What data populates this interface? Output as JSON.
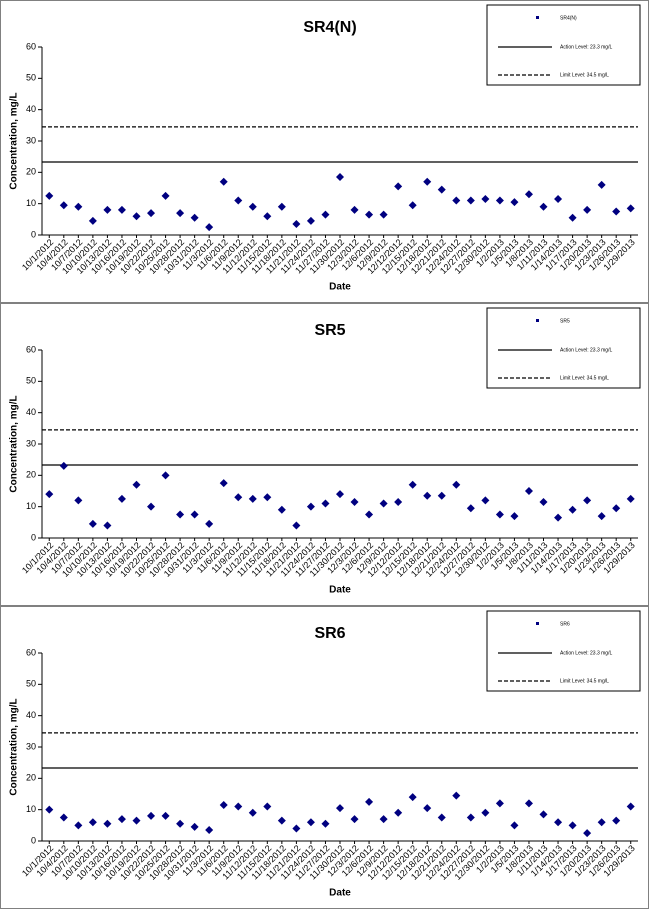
{
  "chart_data": [
    {
      "type": "scatter",
      "title": "SR4(N)",
      "x_label": "Date",
      "y_label": "Concentration, mg/L",
      "categories": [
        "10/1/2012",
        "10/4/2012",
        "10/7/2012",
        "10/10/2012",
        "10/13/2012",
        "10/16/2012",
        "10/19/2012",
        "10/22/2012",
        "10/25/2012",
        "10/28/2012",
        "10/31/2012",
        "11/3/2012",
        "11/6/2012",
        "11/9/2012",
        "11/12/2012",
        "11/15/2012",
        "11/18/2012",
        "11/21/2012",
        "11/24/2012",
        "11/27/2012",
        "11/30/2012",
        "12/3/2012",
        "12/6/2012",
        "12/9/2012",
        "12/12/2012",
        "12/15/2012",
        "12/18/2012",
        "12/21/2012",
        "12/24/2012",
        "12/27/2012",
        "12/30/2012",
        "1/2/2013",
        "1/5/2013",
        "1/8/2013",
        "1/11/2013",
        "1/14/2013",
        "1/17/2013",
        "1/20/2013",
        "1/23/2013",
        "1/26/2013",
        "1/29/2013"
      ],
      "series": [
        {
          "name": "SR4(N)",
          "color": "#000080",
          "values": [
            12.5,
            9.5,
            9,
            4.5,
            8,
            8,
            6,
            7,
            12.5,
            7,
            5.5,
            2.5,
            17,
            11,
            9,
            6,
            9,
            3.5,
            4.5,
            6.5,
            18.5,
            8,
            6.5,
            6.5,
            15.5,
            9.5,
            17,
            14.5,
            11,
            11,
            11.5,
            11,
            10.5,
            13,
            9,
            11.5,
            5.5,
            8,
            16,
            7.5,
            8.5
          ]
        }
      ],
      "hlines": [
        {
          "name": "Action Level: 23.3 mg/L",
          "value": 23.3,
          "style": "solid"
        },
        {
          "name": "Limit Level: 34.5 mg/L",
          "value": 34.5,
          "style": "dashed"
        }
      ],
      "ylim": [
        0,
        60
      ],
      "yticks": [
        0,
        10,
        20,
        30,
        40,
        50,
        60
      ]
    },
    {
      "type": "scatter",
      "title": "SR5",
      "x_label": "Date",
      "y_label": "Concentration, mg/L",
      "categories": [
        "10/1/2012",
        "10/4/2012",
        "10/7/2012",
        "10/10/2012",
        "10/13/2012",
        "10/16/2012",
        "10/19/2012",
        "10/22/2012",
        "10/25/2012",
        "10/28/2012",
        "10/31/2012",
        "11/3/2012",
        "11/6/2012",
        "11/9/2012",
        "11/12/2012",
        "11/15/2012",
        "11/18/2012",
        "11/21/2012",
        "11/24/2012",
        "11/27/2012",
        "11/30/2012",
        "12/3/2012",
        "12/6/2012",
        "12/9/2012",
        "12/12/2012",
        "12/15/2012",
        "12/18/2012",
        "12/21/2012",
        "12/24/2012",
        "12/27/2012",
        "12/30/2012",
        "1/2/2013",
        "1/5/2013",
        "1/8/2013",
        "1/11/2013",
        "1/14/2013",
        "1/17/2013",
        "1/20/2013",
        "1/23/2013",
        "1/26/2013",
        "1/29/2013"
      ],
      "series": [
        {
          "name": "SR5",
          "color": "#000080",
          "values": [
            14,
            23,
            12,
            4.5,
            4,
            12.5,
            17,
            10,
            20,
            7.5,
            7.5,
            4.5,
            17.5,
            13,
            12.5,
            13,
            9,
            4,
            10,
            11,
            14,
            11.5,
            7.5,
            11,
            11.5,
            17,
            13.5,
            13.5,
            17,
            9.5,
            12,
            7.5,
            7,
            15,
            11.5,
            6.5,
            9,
            12,
            7,
            9.5,
            12.5
          ]
        }
      ],
      "hlines": [
        {
          "name": "Action Level: 23.3 mg/L",
          "value": 23.3,
          "style": "solid"
        },
        {
          "name": "Limit Level: 34.5 mg/L",
          "value": 34.5,
          "style": "dashed"
        }
      ],
      "ylim": [
        0,
        60
      ],
      "yticks": [
        0,
        10,
        20,
        30,
        40,
        50,
        60
      ]
    },
    {
      "type": "scatter",
      "title": "SR6",
      "x_label": "Date",
      "y_label": "Concentration, mg/L",
      "categories": [
        "10/1/2012",
        "10/4/2012",
        "10/7/2012",
        "10/10/2012",
        "10/13/2012",
        "10/16/2012",
        "10/19/2012",
        "10/22/2012",
        "10/25/2012",
        "10/28/2012",
        "10/31/2012",
        "11/3/2012",
        "11/6/2012",
        "11/9/2012",
        "11/12/2012",
        "11/15/2012",
        "11/18/2012",
        "11/21/2012",
        "11/24/2012",
        "11/27/2012",
        "11/30/2012",
        "12/3/2012",
        "12/6/2012",
        "12/9/2012",
        "12/12/2012",
        "12/15/2012",
        "12/18/2012",
        "12/21/2012",
        "12/24/2012",
        "12/27/2012",
        "12/30/2012",
        "1/2/2013",
        "1/5/2013",
        "1/8/2013",
        "1/11/2013",
        "1/14/2013",
        "1/17/2013",
        "1/20/2013",
        "1/23/2013",
        "1/26/2013",
        "1/29/2013"
      ],
      "series": [
        {
          "name": "SR6",
          "color": "#000080",
          "values": [
            10,
            7.5,
            5,
            6,
            5.5,
            7,
            6.5,
            8,
            8,
            5.5,
            4.5,
            3.5,
            11.5,
            11,
            9,
            11,
            6.5,
            4,
            6,
            5.5,
            10.5,
            7,
            12.5,
            7,
            9,
            14,
            10.5,
            7.5,
            14.5,
            7.5,
            9,
            12,
            5,
            12,
            8.5,
            6,
            5,
            2.5,
            6,
            6.5,
            11
          ]
        }
      ],
      "hlines": [
        {
          "name": "Action Level: 23.3 mg/L",
          "value": 23.3,
          "style": "solid"
        },
        {
          "name": "Limit Level: 34.5 mg/L",
          "value": 34.5,
          "style": "dashed"
        }
      ],
      "ylim": [
        0,
        60
      ],
      "yticks": [
        0,
        10,
        20,
        30,
        40,
        50,
        60
      ]
    }
  ]
}
